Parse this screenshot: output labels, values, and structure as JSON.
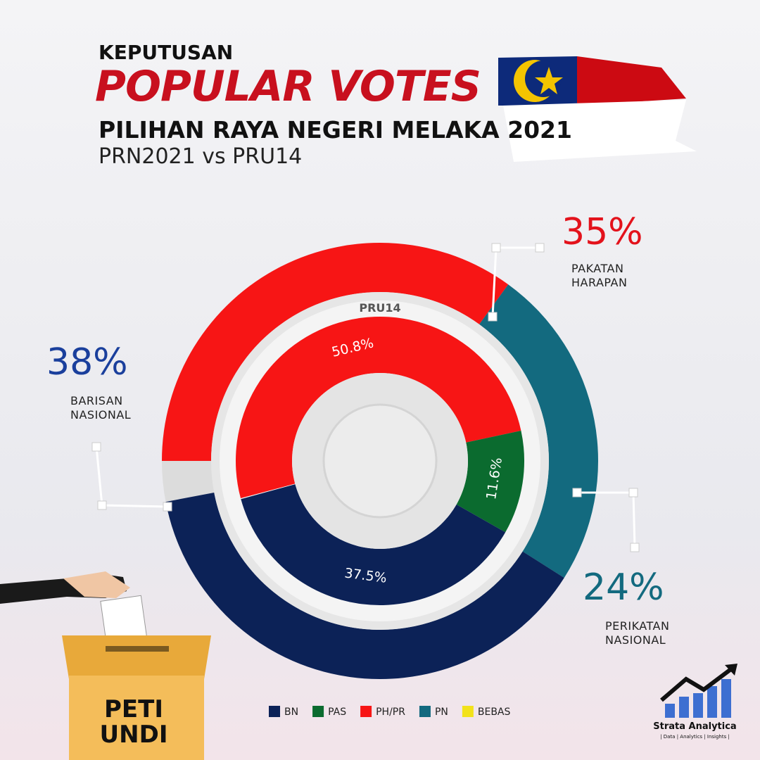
{
  "chart_data": {
    "type": "donut",
    "kicker": "KEPUTUSAN",
    "title": "POPULAR VOTES",
    "subtitle": "PILIHAN RAYA NEGERI MELAKA 2021",
    "note": "PRN2021 vs PRU14",
    "outer": {
      "labels": [
        "PAKATAN HARAPAN",
        "PERIKATAN NASIONAL",
        "BARISAN NASIONAL"
      ],
      "values": [
        35,
        24,
        38
      ],
      "value_labels": [
        "35%",
        "24%",
        "38%"
      ],
      "colors": [
        "#f71515",
        "#136a7f",
        "#0c2257"
      ]
    },
    "inner": {
      "name": "PRU14",
      "values": [
        50.8,
        11.6,
        37.5
      ],
      "value_labels": [
        "50.8%",
        "11.6%",
        "37.5%"
      ],
      "colors": [
        "#f71515",
        "#0b6b2f",
        "#0c2257"
      ]
    },
    "legend": [
      {
        "name": "BN",
        "color": "#0c2257"
      },
      {
        "name": "PAS",
        "color": "#0b6b2f"
      },
      {
        "name": "PH/PR",
        "color": "#f71515"
      },
      {
        "name": "PN",
        "color": "#136a7f"
      },
      {
        "name": "BEBAS",
        "color": "#f2e21a"
      }
    ],
    "box_label": "PETI UNDI",
    "brand": {
      "name": "Strata Analytica",
      "tagline": "| Data | Analytics | Insights |"
    }
  }
}
